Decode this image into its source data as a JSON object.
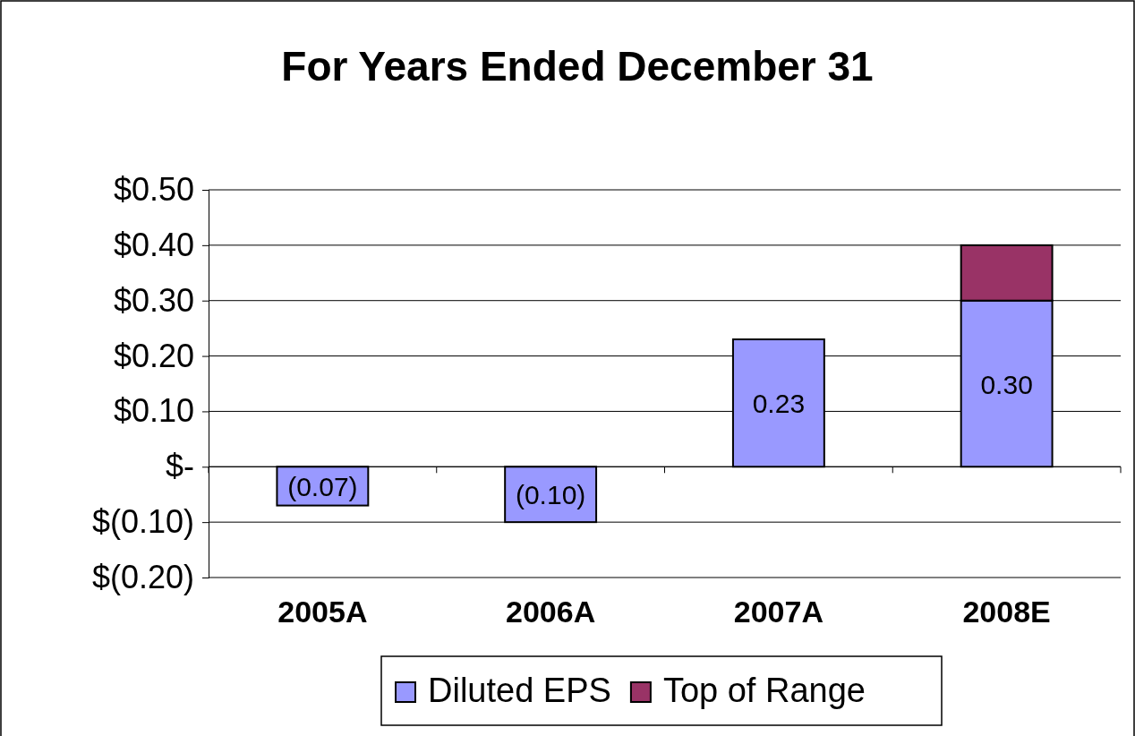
{
  "chart_data": {
    "type": "bar",
    "title": "For Years Ended December 31",
    "categories": [
      "2005A",
      "2006A",
      "2007A",
      "2008E"
    ],
    "stacked": true,
    "series": [
      {
        "name": "Diluted EPS",
        "color": "#9999ff",
        "values": [
          -0.07,
          -0.1,
          0.23,
          0.3
        ],
        "value_labels": [
          "(0.07)",
          "(0.10)",
          "0.23",
          "0.30"
        ]
      },
      {
        "name": "Top of Range",
        "color": "#993366",
        "values": [
          null,
          null,
          null,
          0.1
        ]
      }
    ],
    "ylim": [
      -0.2,
      0.5
    ],
    "yticks": [
      {
        "value": -0.2,
        "label": "$(0.20)"
      },
      {
        "value": -0.1,
        "label": "$(0.10)"
      },
      {
        "value": 0,
        "label": "$-"
      },
      {
        "value": 0.1,
        "label": "$0.10"
      },
      {
        "value": 0.2,
        "label": "$0.20"
      },
      {
        "value": 0.3,
        "label": "$0.30"
      },
      {
        "value": 0.4,
        "label": "$0.40"
      },
      {
        "value": 0.5,
        "label": "$0.50"
      }
    ],
    "grid": "y",
    "legend": "bottom"
  }
}
